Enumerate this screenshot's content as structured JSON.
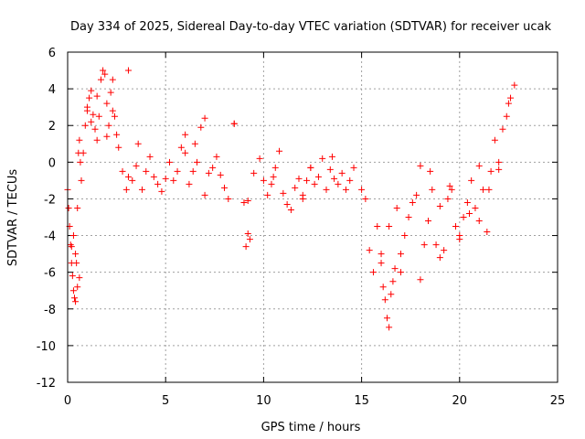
{
  "chart_data": {
    "type": "scatter",
    "title": "Day 334 of 2025, Sidereal Day-to-day VTEC variation (SDTVAR) for receiver ucak",
    "xlabel": "GPS time / hours",
    "ylabel": "SDTVAR / TECUs",
    "xlim": [
      0,
      25
    ],
    "ylim": [
      -12,
      6
    ],
    "xticks": [
      "0",
      "5",
      "10",
      "15",
      "20",
      "25"
    ],
    "yticks": [
      "6",
      "4",
      "2",
      "0",
      "-2",
      "-4",
      "-6",
      "-8",
      "-10",
      "-12"
    ],
    "grid": true,
    "marker": "+",
    "color": "#ff0000",
    "series": [
      {
        "name": "SDTVAR",
        "x": [
          0.0,
          0.05,
          0.1,
          0.15,
          0.2,
          0.25,
          0.3,
          0.35,
          0.4,
          0.45,
          0.5,
          0.55,
          0.6,
          0.65,
          0.7,
          0.8,
          0.9,
          1.0,
          1.1,
          1.2,
          1.3,
          1.4,
          1.5,
          1.6,
          1.7,
          1.8,
          1.9,
          2.0,
          2.1,
          2.2,
          2.3,
          2.4,
          2.5,
          2.6,
          2.8,
          3.0,
          3.1,
          3.3,
          3.5,
          3.6,
          3.8,
          4.0,
          4.2,
          4.4,
          4.6,
          4.8,
          5.0,
          5.2,
          5.4,
          5.6,
          5.8,
          6.0,
          6.2,
          6.4,
          6.6,
          6.8,
          7.0,
          7.2,
          7.4,
          7.6,
          7.8,
          8.0,
          8.2,
          8.5,
          9.0,
          9.1,
          9.2,
          9.3,
          9.5,
          9.8,
          10.0,
          10.2,
          10.4,
          10.6,
          10.8,
          11.0,
          11.2,
          11.4,
          11.6,
          11.8,
          12.0,
          12.2,
          12.4,
          12.6,
          12.8,
          13.0,
          13.2,
          13.4,
          13.6,
          13.8,
          14.0,
          14.2,
          14.4,
          14.6,
          15.0,
          15.2,
          15.4,
          15.6,
          15.8,
          16.0,
          16.1,
          16.2,
          16.3,
          16.4,
          16.5,
          16.6,
          16.7,
          16.8,
          17.0,
          17.2,
          17.4,
          17.6,
          17.8,
          18.0,
          18.2,
          18.4,
          18.6,
          18.8,
          19.0,
          19.2,
          19.4,
          19.6,
          19.8,
          20.0,
          20.2,
          20.4,
          20.6,
          20.8,
          21.0,
          21.2,
          21.4,
          21.6,
          21.8,
          22.0,
          22.2,
          22.4,
          22.6,
          22.8,
          0.2,
          0.3,
          0.4,
          0.5,
          0.6,
          1.0,
          1.2,
          1.5,
          2.0,
          2.3,
          6.0,
          6.5,
          7.0,
          10.5,
          12.0,
          13.5,
          16.0,
          16.4,
          17.0,
          18.5,
          19.0,
          19.5,
          20.0,
          20.5,
          21.0,
          21.5,
          22.0,
          22.5,
          3.1,
          8.5,
          9.2,
          12.4,
          18.0
        ],
        "y": [
          -1.5,
          -2.5,
          -3.5,
          -4.5,
          -5.5,
          -6.2,
          -7.0,
          -7.4,
          -7.6,
          -5.5,
          -2.5,
          0.5,
          1.2,
          0.0,
          -1.0,
          0.5,
          2.0,
          2.8,
          3.5,
          3.9,
          2.6,
          1.8,
          1.2,
          2.5,
          4.5,
          5.0,
          4.8,
          3.2,
          2.0,
          3.8,
          4.5,
          2.5,
          1.5,
          0.8,
          -0.5,
          -1.5,
          -0.8,
          -1.0,
          -0.2,
          1.0,
          -1.5,
          -0.5,
          0.3,
          -0.8,
          -1.2,
          -1.6,
          -0.9,
          0.0,
          -1.0,
          -0.5,
          0.8,
          1.5,
          -1.2,
          -0.5,
          0.0,
          1.9,
          -1.8,
          -0.6,
          -0.3,
          0.3,
          -0.7,
          -1.4,
          -2.0,
          2.1,
          -2.2,
          -4.6,
          -3.9,
          -4.2,
          -0.6,
          0.2,
          -1.0,
          -1.8,
          -1.2,
          -0.3,
          0.6,
          -1.7,
          -2.3,
          -2.6,
          -1.4,
          -0.9,
          -2.0,
          -1.0,
          -0.3,
          -1.2,
          -0.8,
          0.2,
          -1.5,
          -0.4,
          -0.9,
          -1.2,
          -0.6,
          -1.5,
          -1.0,
          -0.3,
          -1.5,
          -2.0,
          -4.8,
          -6.0,
          -3.5,
          -5.5,
          -6.8,
          -7.5,
          -8.5,
          -9.0,
          -7.2,
          -6.5,
          -5.8,
          -2.5,
          -5.0,
          -4.0,
          -3.0,
          -2.2,
          -1.8,
          -6.4,
          -4.5,
          -3.2,
          -1.5,
          -4.5,
          -5.2,
          -4.8,
          -2.0,
          -1.5,
          -3.5,
          -4.2,
          -3.0,
          -2.2,
          -1.0,
          -2.5,
          -0.2,
          -1.5,
          -3.8,
          -0.5,
          1.2,
          0.0,
          1.8,
          2.5,
          3.5,
          4.2,
          -4.6,
          -4.0,
          -5.0,
          -6.8,
          -6.3,
          3.0,
          2.2,
          3.6,
          1.4,
          2.8,
          0.5,
          1.0,
          2.4,
          -0.8,
          -1.8,
          0.3,
          -5.0,
          -3.5,
          -6.0,
          -0.5,
          -2.4,
          -1.3,
          -4.0,
          -2.8,
          -3.2,
          -1.5,
          -0.4,
          3.2,
          5.0,
          2.1,
          -2.1,
          -0.3,
          -0.2
        ]
      }
    ]
  }
}
